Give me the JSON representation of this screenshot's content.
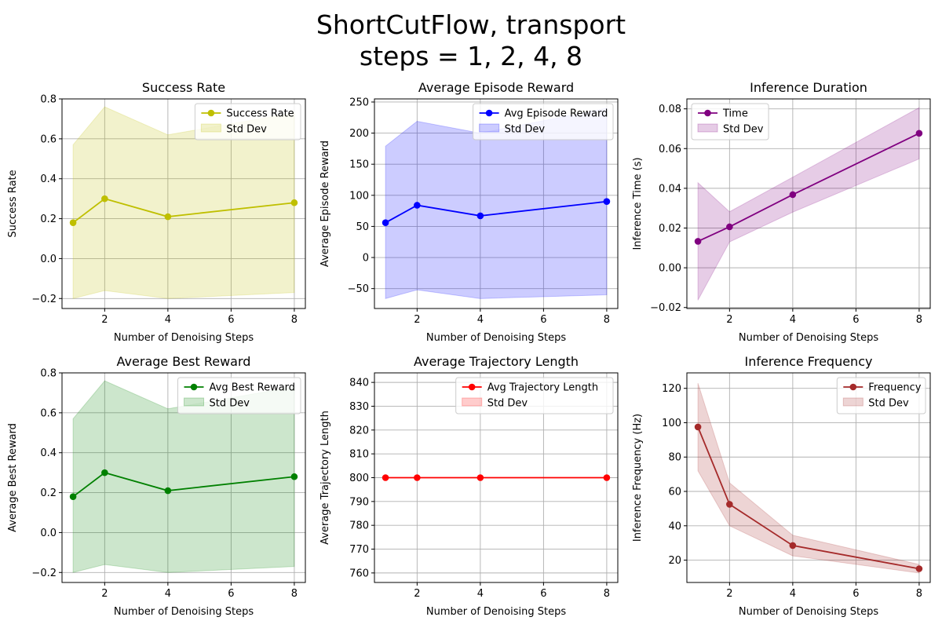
{
  "figure": {
    "title_line1": "ShortCutFlow, transport",
    "title_line2": "steps = 1, 2, 4, 8"
  },
  "chart_data": [
    {
      "type": "line",
      "title": "Success Rate",
      "xlabel": "Number of Denoising Steps",
      "ylabel": "Success Rate",
      "color": "#bfbf00",
      "x": [
        1,
        2,
        4,
        8
      ],
      "series": [
        {
          "name": "Success Rate",
          "values": [
            0.18,
            0.3,
            0.21,
            0.28
          ]
        },
        {
          "name": "Std Dev",
          "lower": [
            -0.2,
            -0.16,
            -0.2,
            -0.17
          ],
          "upper": [
            0.57,
            0.76,
            0.62,
            0.73
          ]
        }
      ],
      "xlim": [
        0.65,
        8.35
      ],
      "ylim": [
        -0.25,
        0.8
      ],
      "xticks": [
        2,
        4,
        6,
        8
      ],
      "yticks": [
        -0.2,
        0.0,
        0.2,
        0.4,
        0.6,
        0.8
      ],
      "ytick_labels": [
        "−0.2",
        "0.0",
        "0.2",
        "0.4",
        "0.6",
        "0.8"
      ],
      "legend": "upper right",
      "grid": true
    },
    {
      "type": "line",
      "title": "Average Episode Reward",
      "xlabel": "Number of Denoising Steps",
      "ylabel": "Average Episode Reward",
      "color": "#0000ff",
      "x": [
        1,
        2,
        4,
        8
      ],
      "series": [
        {
          "name": "Avg Episode Reward",
          "values": [
            56,
            84,
            67,
            90
          ]
        },
        {
          "name": "Std Dev",
          "lower": [
            -66,
            -52,
            -66,
            -60
          ],
          "upper": [
            179,
            219,
            200,
            240
          ]
        }
      ],
      "xlim": [
        0.65,
        8.35
      ],
      "ylim": [
        -82,
        255
      ],
      "xticks": [
        2,
        4,
        6,
        8
      ],
      "yticks": [
        -50,
        0,
        50,
        100,
        150,
        200,
        250
      ],
      "ytick_labels": [
        "−50",
        "0",
        "50",
        "100",
        "150",
        "200",
        "250"
      ],
      "legend": "upper right",
      "grid": true
    },
    {
      "type": "line",
      "title": "Inference Duration",
      "xlabel": "Number of Denoising Steps",
      "ylabel": "Inference Time (s)",
      "color": "#800080",
      "x": [
        1,
        2,
        4,
        8
      ],
      "series": [
        {
          "name": "Time",
          "values": [
            0.0133,
            0.0206,
            0.0368,
            0.0677
          ]
        },
        {
          "name": "Std Dev",
          "lower": [
            -0.0163,
            0.013,
            0.028,
            0.0548
          ],
          "upper": [
            0.0428,
            0.0282,
            0.0456,
            0.0806
          ]
        }
      ],
      "xlim": [
        0.65,
        8.35
      ],
      "ylim": [
        -0.0205,
        0.085
      ],
      "xticks": [
        2,
        4,
        6,
        8
      ],
      "yticks": [
        -0.02,
        0.0,
        0.02,
        0.04,
        0.06,
        0.08
      ],
      "ytick_labels": [
        "−0.02",
        "0.00",
        "0.02",
        "0.04",
        "0.06",
        "0.08"
      ],
      "legend": "upper left",
      "grid": true
    },
    {
      "type": "line",
      "title": "Average Best Reward",
      "xlabel": "Number of Denoising Steps",
      "ylabel": "Average Best Reward",
      "color": "#008000",
      "x": [
        1,
        2,
        4,
        8
      ],
      "series": [
        {
          "name": "Avg Best Reward",
          "values": [
            0.18,
            0.3,
            0.21,
            0.28
          ]
        },
        {
          "name": "Std Dev",
          "lower": [
            -0.2,
            -0.16,
            -0.2,
            -0.17
          ],
          "upper": [
            0.57,
            0.76,
            0.62,
            0.73
          ]
        }
      ],
      "xlim": [
        0.65,
        8.35
      ],
      "ylim": [
        -0.25,
        0.8
      ],
      "xticks": [
        2,
        4,
        6,
        8
      ],
      "yticks": [
        -0.2,
        0.0,
        0.2,
        0.4,
        0.6,
        0.8
      ],
      "ytick_labels": [
        "−0.2",
        "0.0",
        "0.2",
        "0.4",
        "0.6",
        "0.8"
      ],
      "legend": "upper right",
      "grid": true
    },
    {
      "type": "line",
      "title": "Average Trajectory Length",
      "xlabel": "Number of Denoising Steps",
      "ylabel": "Average Trajectory Length",
      "color": "#ff0000",
      "x": [
        1,
        2,
        4,
        8
      ],
      "series": [
        {
          "name": "Avg Trajectory Length",
          "values": [
            800,
            800,
            800,
            800
          ]
        },
        {
          "name": "Std Dev",
          "lower": [
            800,
            800,
            800,
            800
          ],
          "upper": [
            800,
            800,
            800,
            800
          ]
        }
      ],
      "xlim": [
        0.65,
        8.35
      ],
      "ylim": [
        756,
        844
      ],
      "xticks": [
        2,
        4,
        6,
        8
      ],
      "yticks": [
        760,
        770,
        780,
        790,
        800,
        810,
        820,
        830,
        840
      ],
      "ytick_labels": [
        "760",
        "770",
        "780",
        "790",
        "800",
        "810",
        "820",
        "830",
        "840"
      ],
      "legend": "upper right",
      "grid": true
    },
    {
      "type": "line",
      "title": "Inference Frequency",
      "xlabel": "Number of Denoising Steps",
      "ylabel": "Inference Frequency (Hz)",
      "color": "#a52a2a",
      "x": [
        1,
        2,
        4,
        8
      ],
      "series": [
        {
          "name": "Frequency",
          "values": [
            97.5,
            52.5,
            28.5,
            15.0
          ]
        },
        {
          "name": "Std Dev",
          "lower": [
            72,
            40,
            22.5,
            12.5
          ],
          "upper": [
            123,
            65,
            34.5,
            17.5
          ]
        }
      ],
      "xlim": [
        0.65,
        8.35
      ],
      "ylim": [
        7,
        129
      ],
      "xticks": [
        2,
        4,
        6,
        8
      ],
      "yticks": [
        20,
        40,
        60,
        80,
        100,
        120
      ],
      "ytick_labels": [
        "20",
        "40",
        "60",
        "80",
        "100",
        "120"
      ],
      "legend": "upper right",
      "grid": true
    }
  ]
}
